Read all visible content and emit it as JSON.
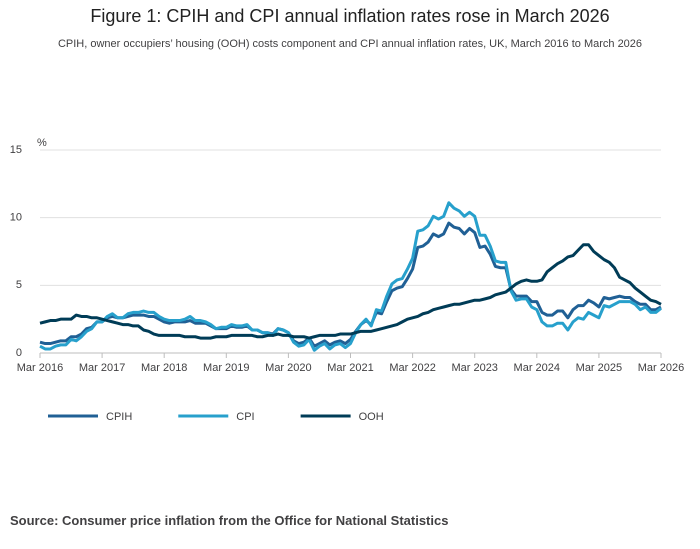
{
  "chart_data": {
    "type": "line",
    "title": "Figure 1: CPIH and CPI annual inflation rates rose in March 2026",
    "subtitle": "CPIH, owner occupiers’ housing (OOH) costs component and CPI annual inflation rates, UK, March 2016 to March 2026",
    "ylabel": "%",
    "source": "Source: Consumer price inflation from the Office for National Statistics",
    "x": [
      "2016-03",
      "2016-04",
      "2016-05",
      "2016-06",
      "2016-07",
      "2016-08",
      "2016-09",
      "2016-10",
      "2016-11",
      "2016-12",
      "2017-01",
      "2017-02",
      "2017-03",
      "2017-04",
      "2017-05",
      "2017-06",
      "2017-07",
      "2017-08",
      "2017-09",
      "2017-10",
      "2017-11",
      "2017-12",
      "2018-01",
      "2018-02",
      "2018-03",
      "2018-04",
      "2018-05",
      "2018-06",
      "2018-07",
      "2018-08",
      "2018-09",
      "2018-10",
      "2018-11",
      "2018-12",
      "2019-01",
      "2019-02",
      "2019-03",
      "2019-04",
      "2019-05",
      "2019-06",
      "2019-07",
      "2019-08",
      "2019-09",
      "2019-10",
      "2019-11",
      "2019-12",
      "2020-01",
      "2020-02",
      "2020-03",
      "2020-04",
      "2020-05",
      "2020-06",
      "2020-07",
      "2020-08",
      "2020-09",
      "2020-10",
      "2020-11",
      "2020-12",
      "2021-01",
      "2021-02",
      "2021-03",
      "2021-04",
      "2021-05",
      "2021-06",
      "2021-07",
      "2021-08",
      "2021-09",
      "2021-10",
      "2021-11",
      "2021-12",
      "2022-01",
      "2022-02",
      "2022-03",
      "2022-04",
      "2022-05",
      "2022-06",
      "2022-07",
      "2022-08",
      "2022-09",
      "2022-10",
      "2022-11",
      "2022-12",
      "2023-01",
      "2023-02",
      "2023-03",
      "2023-04",
      "2023-05",
      "2023-06",
      "2023-07",
      "2023-08",
      "2023-09",
      "2023-10",
      "2023-11",
      "2023-12",
      "2024-01",
      "2024-02",
      "2024-03",
      "2024-04",
      "2024-05",
      "2024-06",
      "2024-07",
      "2024-08",
      "2024-09",
      "2024-10",
      "2024-11",
      "2024-12",
      "2025-01",
      "2025-02",
      "2025-03",
      "2025-04",
      "2025-05",
      "2025-06",
      "2025-07",
      "2025-08",
      "2025-09",
      "2025-10",
      "2025-11",
      "2025-12",
      "2026-01",
      "2026-02",
      "2026-03"
    ],
    "series": [
      {
        "name": "CPIH",
        "color": "#206095",
        "values": [
          0.8,
          0.7,
          0.7,
          0.8,
          0.9,
          0.9,
          1.2,
          1.2,
          1.4,
          1.8,
          1.9,
          2.3,
          2.3,
          2.6,
          2.7,
          2.6,
          2.6,
          2.7,
          2.8,
          2.8,
          2.8,
          2.7,
          2.7,
          2.5,
          2.3,
          2.2,
          2.3,
          2.3,
          2.3,
          2.4,
          2.2,
          2.2,
          2.2,
          2.0,
          1.8,
          1.8,
          1.8,
          2.0,
          1.9,
          1.9,
          2.0,
          1.7,
          1.7,
          1.5,
          1.5,
          1.4,
          1.8,
          1.7,
          1.5,
          0.9,
          0.7,
          0.8,
          1.1,
          0.5,
          0.7,
          0.9,
          0.6,
          0.8,
          0.9,
          0.7,
          1.0,
          1.6,
          2.1,
          2.4,
          2.1,
          3.0,
          2.9,
          3.8,
          4.6,
          4.8,
          4.9,
          5.5,
          6.2,
          7.8,
          7.9,
          8.2,
          8.8,
          8.6,
          8.8,
          9.6,
          9.3,
          9.2,
          8.8,
          9.2,
          8.9,
          7.8,
          7.9,
          7.3,
          6.4,
          6.3,
          6.3,
          4.7,
          4.2,
          4.2,
          4.2,
          3.8,
          3.8,
          3.0,
          2.8,
          2.8,
          3.1,
          3.1,
          2.6,
          3.2,
          3.5,
          3.5,
          3.9,
          3.7,
          3.4,
          4.1,
          4.0,
          4.1,
          4.2,
          4.1,
          4.1,
          3.8,
          3.6,
          3.6,
          3.2,
          3.2,
          3.4
        ]
      },
      {
        "name": "CPI",
        "color": "#27a0cc",
        "values": [
          0.5,
          0.3,
          0.3,
          0.5,
          0.6,
          0.6,
          1.0,
          0.9,
          1.2,
          1.6,
          1.8,
          2.3,
          2.3,
          2.7,
          2.9,
          2.6,
          2.6,
          2.9,
          3.0,
          3.0,
          3.1,
          3.0,
          3.0,
          2.7,
          2.5,
          2.4,
          2.4,
          2.4,
          2.5,
          2.7,
          2.4,
          2.4,
          2.3,
          2.1,
          1.8,
          1.9,
          1.9,
          2.1,
          2.0,
          2.0,
          2.1,
          1.7,
          1.7,
          1.5,
          1.5,
          1.3,
          1.8,
          1.7,
          1.5,
          0.8,
          0.5,
          0.6,
          1.0,
          0.2,
          0.5,
          0.7,
          0.3,
          0.6,
          0.7,
          0.4,
          0.7,
          1.5,
          2.1,
          2.5,
          2.0,
          3.2,
          3.1,
          4.2,
          5.1,
          5.4,
          5.5,
          6.2,
          7.0,
          9.0,
          9.1,
          9.4,
          10.1,
          9.9,
          10.1,
          11.1,
          10.7,
          10.5,
          10.1,
          10.4,
          10.1,
          8.7,
          8.7,
          7.9,
          6.8,
          6.7,
          6.7,
          4.6,
          3.9,
          4.0,
          4.0,
          3.4,
          3.2,
          2.3,
          2.0,
          2.0,
          2.2,
          2.2,
          1.7,
          2.3,
          2.6,
          2.5,
          3.0,
          2.8,
          2.6,
          3.5,
          3.4,
          3.6,
          3.8,
          3.8,
          3.8,
          3.6,
          3.2,
          3.4,
          3.0,
          3.0,
          3.3
        ]
      },
      {
        "name": "OOH",
        "color": "#003c57",
        "values": [
          2.2,
          2.3,
          2.4,
          2.4,
          2.5,
          2.5,
          2.5,
          2.8,
          2.7,
          2.7,
          2.6,
          2.6,
          2.5,
          2.4,
          2.3,
          2.2,
          2.1,
          2.1,
          2.0,
          2.0,
          1.7,
          1.6,
          1.4,
          1.3,
          1.3,
          1.3,
          1.3,
          1.3,
          1.2,
          1.2,
          1.2,
          1.1,
          1.1,
          1.1,
          1.2,
          1.2,
          1.2,
          1.3,
          1.3,
          1.3,
          1.3,
          1.3,
          1.2,
          1.2,
          1.3,
          1.3,
          1.4,
          1.3,
          1.3,
          1.2,
          1.2,
          1.2,
          1.1,
          1.2,
          1.3,
          1.3,
          1.3,
          1.3,
          1.4,
          1.4,
          1.4,
          1.5,
          1.6,
          1.6,
          1.6,
          1.7,
          1.8,
          1.9,
          2.0,
          2.1,
          2.3,
          2.5,
          2.6,
          2.7,
          2.9,
          3.0,
          3.2,
          3.3,
          3.4,
          3.5,
          3.6,
          3.6,
          3.7,
          3.8,
          3.9,
          3.9,
          4.0,
          4.1,
          4.3,
          4.4,
          4.5,
          4.8,
          5.1,
          5.3,
          5.4,
          5.3,
          5.3,
          5.4,
          6.0,
          6.3,
          6.6,
          6.8,
          7.1,
          7.2,
          7.6,
          8.0,
          8.0,
          7.5,
          7.2,
          6.9,
          6.7,
          6.3,
          5.6,
          5.4,
          5.2,
          4.8,
          4.5,
          4.2,
          3.9,
          3.8,
          3.6
        ]
      }
    ],
    "xlim": [
      "2016-03",
      "2026-03"
    ],
    "xticks": [
      {
        "value": "2016-03",
        "label": "Mar 2016"
      },
      {
        "value": "2017-03",
        "label": "Mar 2017"
      },
      {
        "value": "2018-03",
        "label": "Mar 2018"
      },
      {
        "value": "2019-03",
        "label": "Mar 2019"
      },
      {
        "value": "2020-03",
        "label": "Mar 2020"
      },
      {
        "value": "2021-03",
        "label": "Mar 2021"
      },
      {
        "value": "2022-03",
        "label": "Mar 2022"
      },
      {
        "value": "2023-03",
        "label": "Mar 2023"
      },
      {
        "value": "2024-03",
        "label": "Mar 2024"
      },
      {
        "value": "2025-03",
        "label": "Mar 2025"
      },
      {
        "value": "2026-03",
        "label": "Mar 2026"
      }
    ],
    "ylim": [
      0,
      15
    ],
    "yticks": [
      0,
      5,
      10,
      15
    ],
    "grid": true,
    "legend": "bottom"
  }
}
